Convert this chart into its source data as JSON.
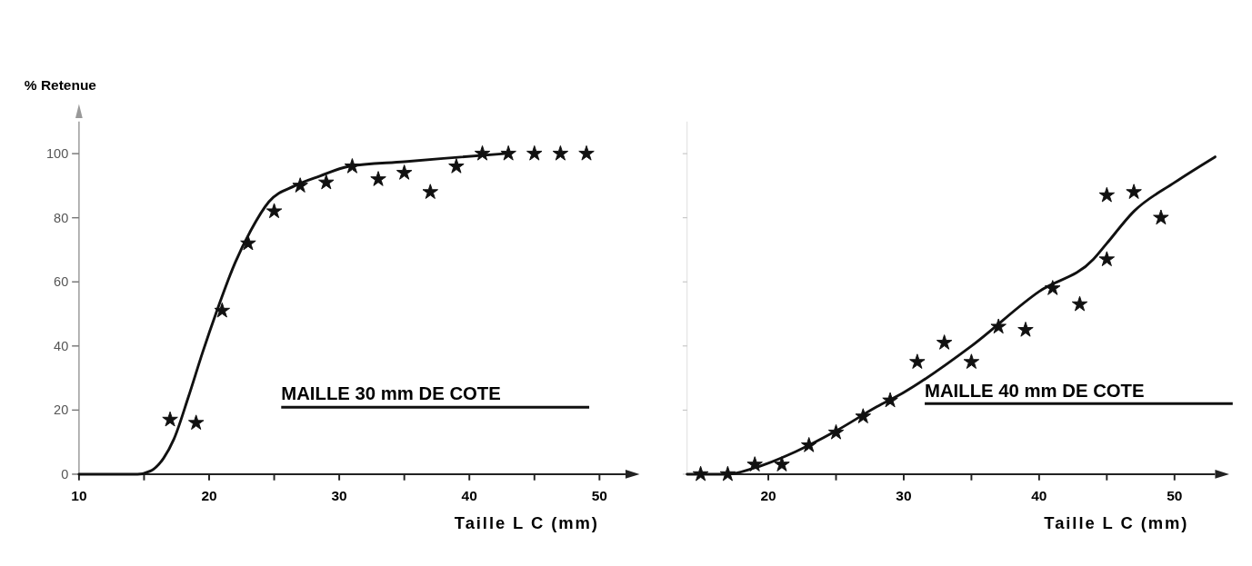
{
  "chart_data": [
    {
      "type": "scatter",
      "xlabel": "Taille L C (mm)",
      "ylabel": "% Retenue",
      "xlim": [
        10,
        52
      ],
      "ylim": [
        0,
        110
      ],
      "xticks": [
        10,
        {
          "value": 15,
          "label": null
        },
        20,
        {
          "value": 25,
          "label": null
        },
        30,
        {
          "value": 35,
          "label": null
        },
        40,
        {
          "value": 45,
          "label": null
        },
        50
      ],
      "yticks": [
        0,
        20,
        40,
        60,
        80,
        100
      ],
      "annotations": [
        "MAILLE  30 mm DE COTE"
      ],
      "series": [
        {
          "marker": "star",
          "color": "#111111",
          "x": [
            17,
            19,
            21,
            23,
            25,
            27,
            29,
            31,
            33,
            35,
            37,
            39,
            41,
            43,
            45,
            47,
            49
          ],
          "values": [
            17,
            16,
            51,
            72,
            82,
            90,
            91,
            96,
            92,
            94,
            88,
            96,
            100,
            100,
            100,
            100,
            100
          ]
        },
        {
          "type": "line",
          "marker": "none",
          "color": "#111111",
          "x": [
            10,
            14.5,
            15.5,
            16.5,
            17.3,
            18.4,
            19.5,
            20.6,
            22,
            23.2,
            24.6,
            26.6,
            28.5,
            30.7,
            35,
            38,
            42.7
          ],
          "values": [
            0,
            0,
            1,
            5,
            11,
            24,
            38,
            51,
            66,
            76,
            85,
            90,
            93,
            96,
            97.5,
            98.5,
            100
          ]
        }
      ]
    },
    {
      "type": "scatter",
      "xlabel": "Taille L C (mm)",
      "xlim": [
        14,
        53
      ],
      "xticks": [
        20,
        {
          "value": 25,
          "label": null
        },
        30,
        {
          "value": 35,
          "label": null
        },
        40,
        {
          "value": 45,
          "label": null
        },
        50
      ],
      "ylim": [
        0,
        110
      ],
      "yticks": [
        0,
        20,
        40,
        60,
        80,
        100
      ],
      "tick_labels": "x",
      "annotations": [
        "MAILLE 40 mm DE COTE"
      ],
      "series": [
        {
          "marker": "star",
          "color": "#111111",
          "x": [
            15,
            17,
            19,
            21,
            23,
            25,
            27,
            29,
            31,
            33,
            35,
            37,
            39,
            41,
            43,
            45,
            45,
            47,
            49
          ],
          "values": [
            0,
            0,
            3,
            3,
            9,
            13,
            18,
            23,
            35,
            41,
            35,
            46,
            45,
            58,
            53,
            67,
            87,
            88,
            80
          ]
        },
        {
          "type": "line",
          "marker": "none",
          "color": "#111111",
          "x": [
            14,
            17,
            19,
            22,
            25,
            28,
            30,
            35,
            40,
            44,
            45,
            47,
            50,
            53
          ],
          "values": [
            0,
            0,
            2,
            7,
            13.5,
            21,
            25.5,
            40,
            57,
            67,
            72,
            82,
            91,
            99
          ]
        }
      ]
    }
  ]
}
